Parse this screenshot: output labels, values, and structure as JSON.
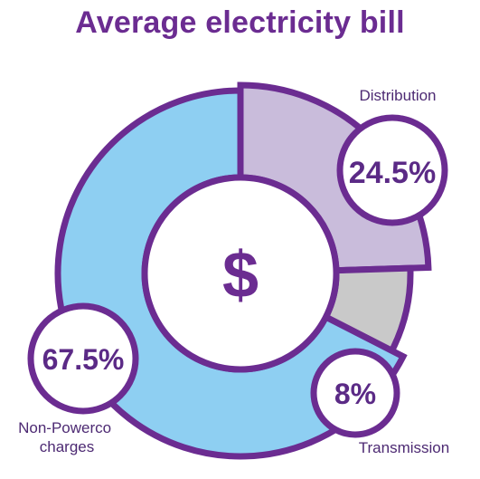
{
  "chart_data": {
    "type": "pie",
    "title": "Average electricity bill",
    "center_symbol": "$",
    "slices": [
      {
        "label": "Distribution",
        "value": 24.5,
        "display": "24.5%",
        "color": "#c9bcdb"
      },
      {
        "label": "Transmission",
        "value": 8,
        "display": "8%",
        "color": "#c9c9c9"
      },
      {
        "label": "Non-Powerco charges",
        "value": 67.5,
        "display": "67.5%",
        "color": "#8ecff2"
      }
    ],
    "colors": {
      "outline": "#6b2c91",
      "title": "#6b2c91",
      "center": "#ffffff"
    }
  }
}
